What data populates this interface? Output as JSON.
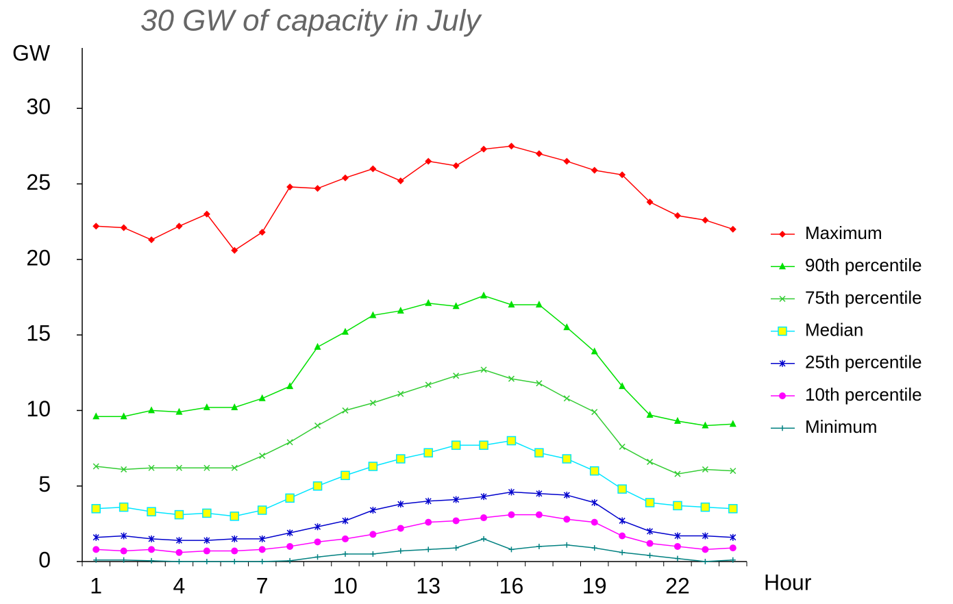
{
  "chart_data": {
    "type": "line",
    "title": "30 GW of capacity in July",
    "y_label": "GW",
    "x_label": "Hour",
    "x": [
      1,
      2,
      3,
      4,
      5,
      6,
      7,
      8,
      9,
      10,
      11,
      12,
      13,
      14,
      15,
      16,
      17,
      18,
      19,
      20,
      21,
      22,
      23,
      24
    ],
    "xlim": [
      0.5,
      24.5
    ],
    "xticks": [
      1,
      4,
      7,
      10,
      13,
      16,
      19,
      22
    ],
    "ylim": [
      0,
      34
    ],
    "yticks": [
      0,
      5,
      10,
      15,
      20,
      25,
      30
    ],
    "legend": "right",
    "series": [
      {
        "name": "Maximum",
        "color": "#ff0000",
        "marker": "diamond",
        "values": [
          22.2,
          22.1,
          21.3,
          22.2,
          23.0,
          20.6,
          21.8,
          24.8,
          24.7,
          25.4,
          26.0,
          25.2,
          26.5,
          26.2,
          27.3,
          27.5,
          27.0,
          26.5,
          25.9,
          25.6,
          23.8,
          22.9,
          22.6,
          22.0
        ]
      },
      {
        "name": "90th percentile",
        "color": "#00e000",
        "marker": "triangle",
        "values": [
          9.6,
          9.6,
          10.0,
          9.9,
          10.2,
          10.2,
          10.8,
          11.6,
          14.2,
          15.2,
          16.3,
          16.6,
          17.1,
          16.9,
          17.6,
          17.0,
          17.0,
          15.5,
          13.9,
          11.6,
          9.7,
          9.3,
          9.0,
          9.1
        ]
      },
      {
        "name": "75th percentile",
        "color": "#33cc33",
        "marker": "x",
        "values": [
          6.3,
          6.1,
          6.2,
          6.2,
          6.2,
          6.2,
          7.0,
          7.9,
          9.0,
          10.0,
          10.5,
          11.1,
          11.7,
          12.3,
          12.7,
          12.1,
          11.8,
          10.8,
          9.9,
          7.6,
          6.6,
          5.8,
          6.1,
          6.0
        ]
      },
      {
        "name": "Median",
        "color": "#00e5ff",
        "marker": "square",
        "marker_fill": "#ffff00",
        "values": [
          3.5,
          3.6,
          3.3,
          3.1,
          3.2,
          3.0,
          3.4,
          4.2,
          5.0,
          5.7,
          6.3,
          6.8,
          7.2,
          7.7,
          7.7,
          8.0,
          7.2,
          6.8,
          6.0,
          4.8,
          3.9,
          3.7,
          3.6,
          3.5
        ]
      },
      {
        "name": "25th percentile",
        "color": "#0000cc",
        "marker": "asterisk",
        "values": [
          1.6,
          1.7,
          1.5,
          1.4,
          1.4,
          1.5,
          1.5,
          1.9,
          2.3,
          2.7,
          3.4,
          3.8,
          4.0,
          4.1,
          4.3,
          4.6,
          4.5,
          4.4,
          3.9,
          2.7,
          2.0,
          1.7,
          1.7,
          1.6
        ]
      },
      {
        "name": "10th percentile",
        "color": "#ff00ff",
        "marker": "circle",
        "values": [
          0.8,
          0.7,
          0.8,
          0.6,
          0.7,
          0.7,
          0.8,
          1.0,
          1.3,
          1.5,
          1.8,
          2.2,
          2.6,
          2.7,
          2.9,
          3.1,
          3.1,
          2.8,
          2.6,
          1.7,
          1.2,
          1.0,
          0.8,
          0.9
        ]
      },
      {
        "name": "Minimum",
        "color": "#008080",
        "marker": "plus",
        "values": [
          0.1,
          0.1,
          0.05,
          0.0,
          0.0,
          0.0,
          0.0,
          0.05,
          0.3,
          0.5,
          0.5,
          0.7,
          0.8,
          0.9,
          1.5,
          0.8,
          1.0,
          1.1,
          0.9,
          0.6,
          0.4,
          0.2,
          0.0,
          0.1
        ]
      }
    ]
  }
}
